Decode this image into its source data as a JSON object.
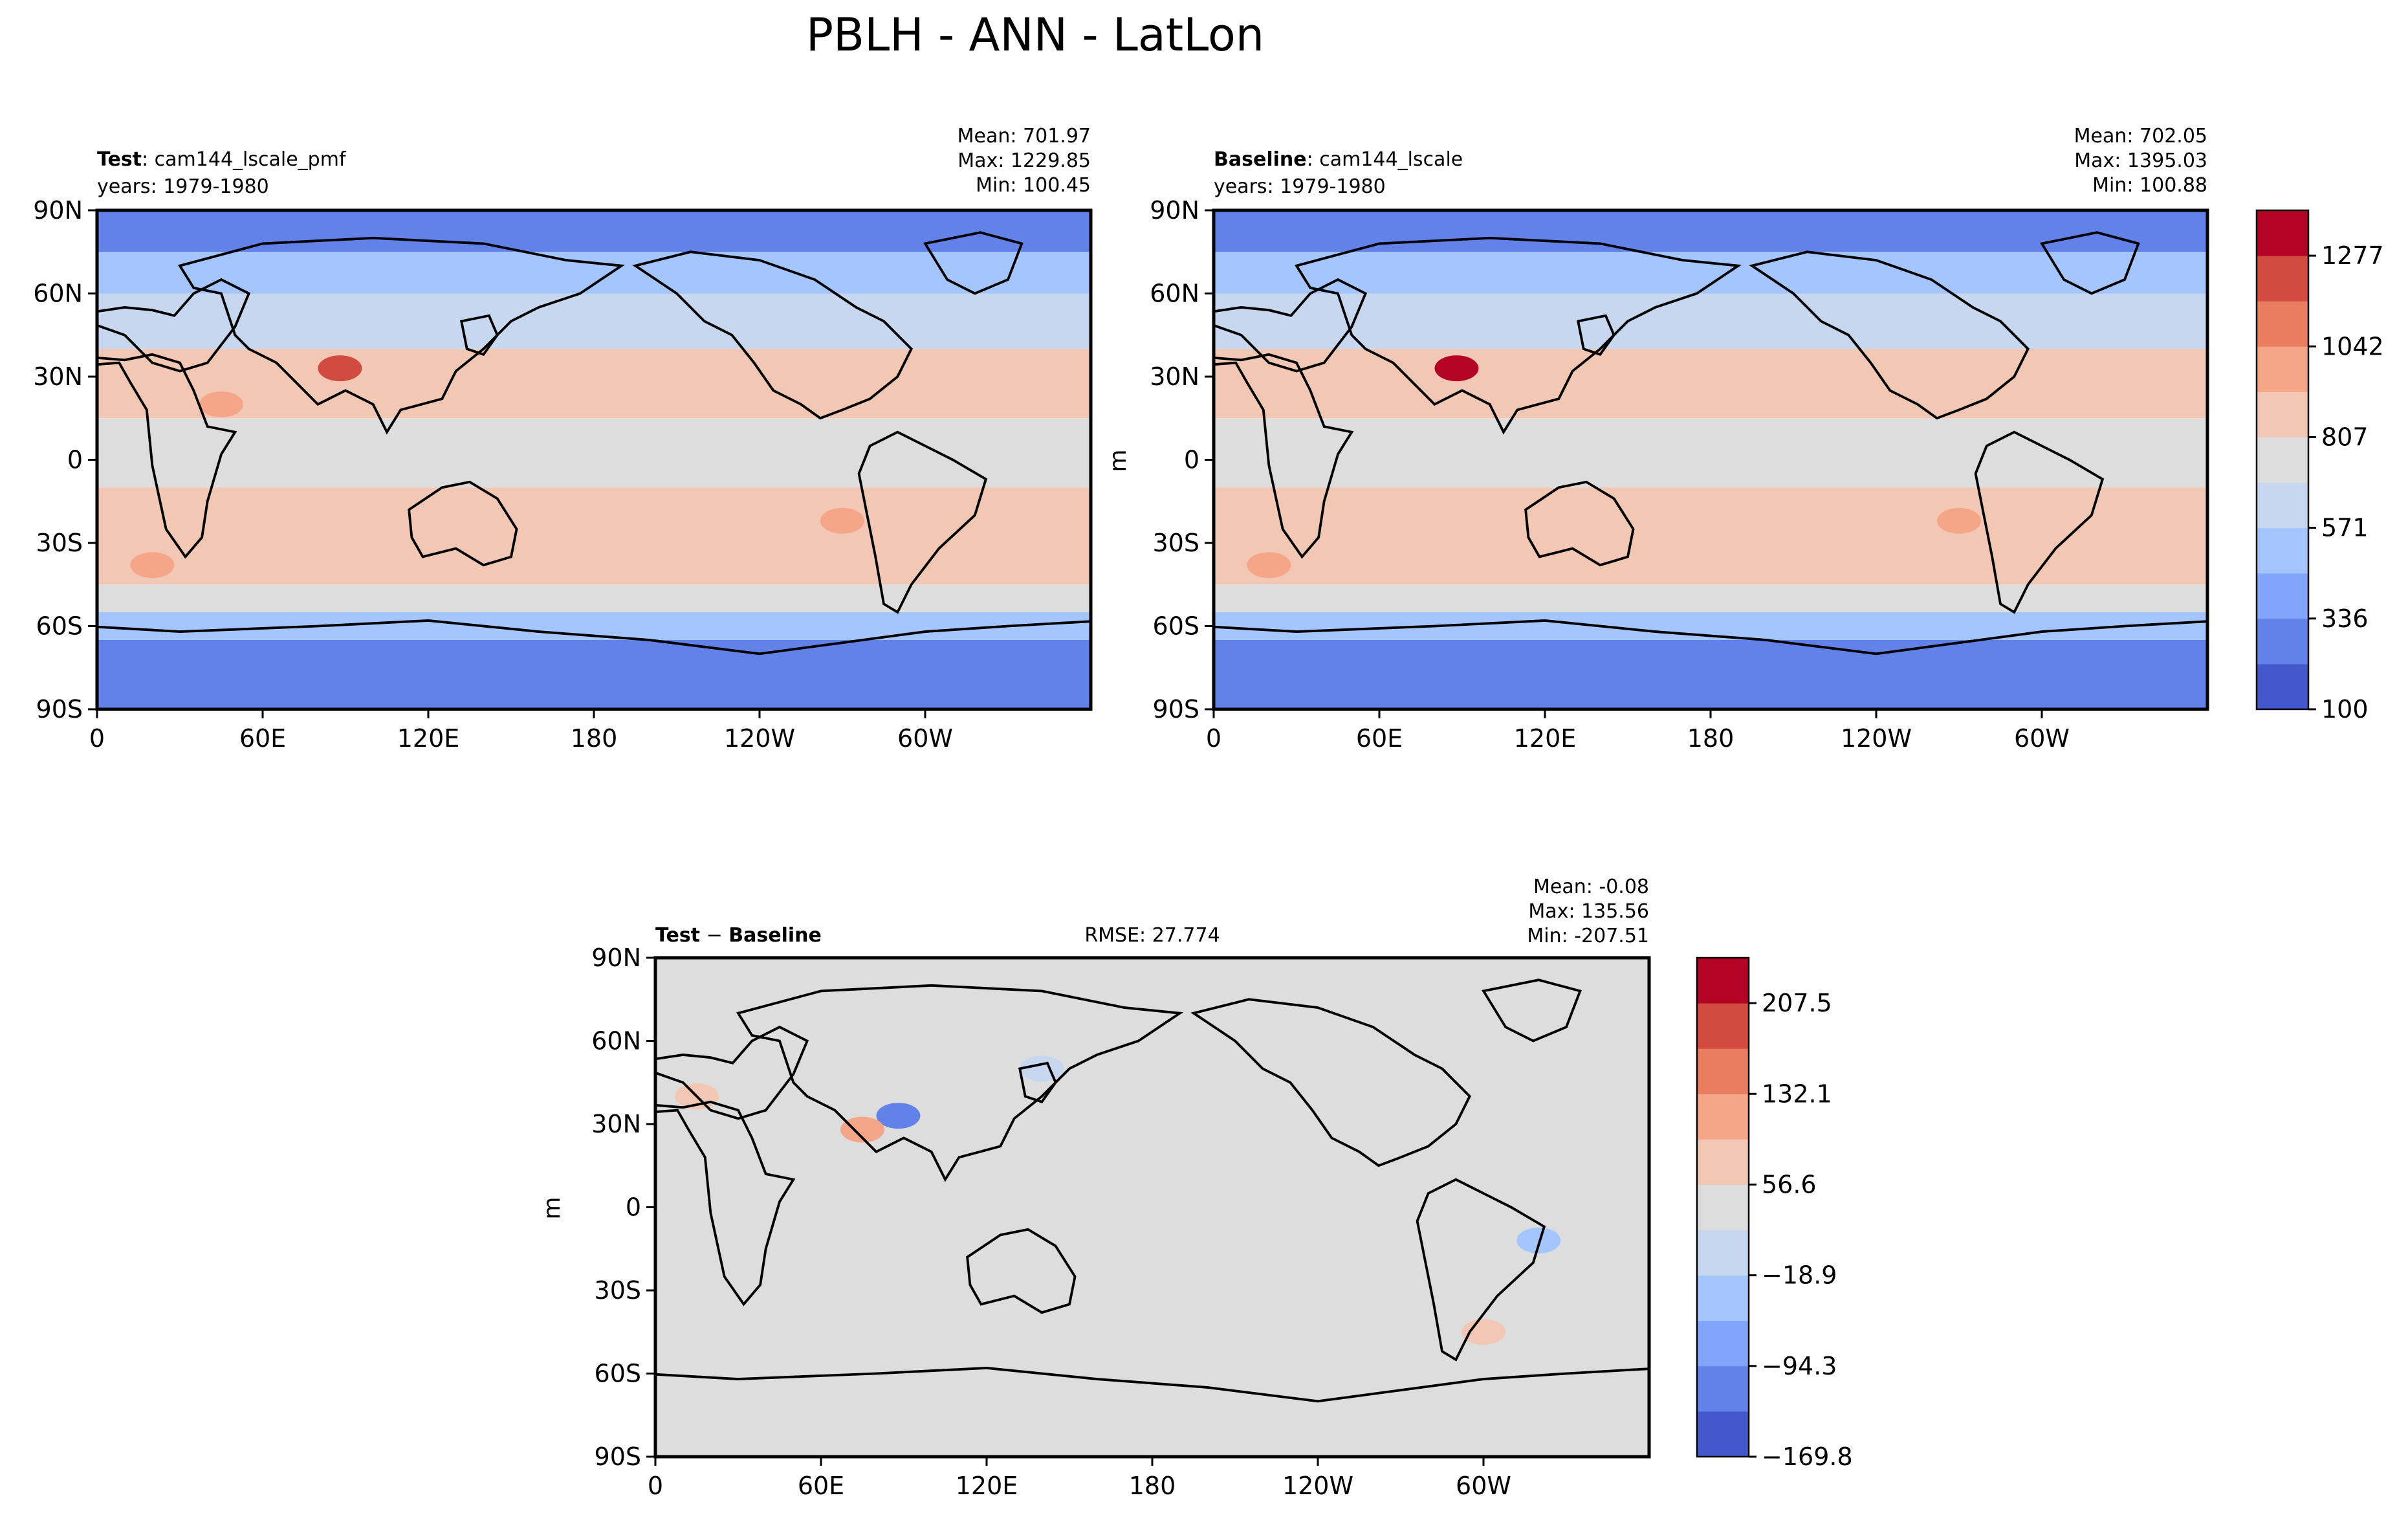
{
  "figure": {
    "title": "PBLH - ANN - LatLon"
  },
  "chart_data": [
    {
      "type": "heatmap",
      "panel": "test",
      "label_bold": "Test",
      "label_rest": ": cam144_lscale_pmf",
      "years": "years: 1979-1980",
      "stats": [
        "Mean: 701.97",
        "Max: 1229.85",
        "Min: 100.45"
      ],
      "ylabel": "",
      "x_ticks": [
        "0",
        "60E",
        "120E",
        "180",
        "120W",
        "60W"
      ],
      "y_ticks": [
        "90N",
        "60N",
        "30N",
        "0",
        "30S",
        "60S",
        "90S"
      ],
      "xlim": [
        0,
        360
      ],
      "ylim": [
        -90,
        90
      ],
      "colorbar": "shared",
      "bands": [
        {
          "lat": [
            90,
            75
          ],
          "level": 1
        },
        {
          "lat": [
            75,
            60
          ],
          "level": 3
        },
        {
          "lat": [
            60,
            40
          ],
          "level": 4
        },
        {
          "lat": [
            40,
            15
          ],
          "level": 6
        },
        {
          "lat": [
            15,
            -10
          ],
          "level": 5
        },
        {
          "lat": [
            -10,
            -45
          ],
          "level": 6
        },
        {
          "lat": [
            -45,
            -55
          ],
          "level": 5
        },
        {
          "lat": [
            -55,
            -65
          ],
          "level": 3
        },
        {
          "lat": [
            -65,
            -90
          ],
          "level": 1
        }
      ],
      "hotspots": [
        {
          "lon": 88,
          "lat": 33,
          "level": 9
        },
        {
          "lon": 20,
          "lat": -38,
          "level": 7
        },
        {
          "lon": 45,
          "lat": 20,
          "level": 7
        },
        {
          "lon": 270,
          "lat": -22,
          "level": 7
        }
      ]
    },
    {
      "type": "heatmap",
      "panel": "baseline",
      "label_bold": "Baseline",
      "label_rest": ": cam144_lscale",
      "years": "years: 1979-1980",
      "stats": [
        "Mean: 702.05",
        "Max: 1395.03",
        "Min: 100.88"
      ],
      "ylabel": "m",
      "x_ticks": [
        "0",
        "60E",
        "120E",
        "180",
        "120W",
        "60W"
      ],
      "y_ticks": [
        "90N",
        "60N",
        "30N",
        "0",
        "30S",
        "60S",
        "90S"
      ],
      "xlim": [
        0,
        360
      ],
      "ylim": [
        -90,
        90
      ],
      "colorbar": {
        "ticks": [
          "1277",
          "1042",
          "807",
          "571",
          "336",
          "100"
        ],
        "colors": [
          "#4358cb",
          "#6282ea",
          "#82a5fb",
          "#a5c5fe",
          "#c8d7f0",
          "#dddddd",
          "#f2c8b4",
          "#f6a688",
          "#ea7d60",
          "#d24b40",
          "#b40426"
        ]
      },
      "bands": [
        {
          "lat": [
            90,
            75
          ],
          "level": 1
        },
        {
          "lat": [
            75,
            60
          ],
          "level": 3
        },
        {
          "lat": [
            60,
            40
          ],
          "level": 4
        },
        {
          "lat": [
            40,
            15
          ],
          "level": 6
        },
        {
          "lat": [
            15,
            -10
          ],
          "level": 5
        },
        {
          "lat": [
            -10,
            -45
          ],
          "level": 6
        },
        {
          "lat": [
            -45,
            -55
          ],
          "level": 5
        },
        {
          "lat": [
            -55,
            -65
          ],
          "level": 3
        },
        {
          "lat": [
            -65,
            -90
          ],
          "level": 1
        }
      ],
      "hotspots": [
        {
          "lon": 88,
          "lat": 33,
          "level": 10
        },
        {
          "lon": 20,
          "lat": -38,
          "level": 7
        },
        {
          "lon": 270,
          "lat": -22,
          "level": 7
        }
      ]
    },
    {
      "type": "heatmap",
      "panel": "diff",
      "label_bold": "Test",
      "label_sep": " − ",
      "label_bold2": "Baseline",
      "rmse": "RMSE: 27.774",
      "stats": [
        "Mean: -0.08",
        "Max: 135.56",
        "Min: -207.51"
      ],
      "ylabel": "m",
      "x_ticks": [
        "0",
        "60E",
        "120E",
        "180",
        "120W",
        "60W"
      ],
      "y_ticks": [
        "90N",
        "60N",
        "30N",
        "0",
        "30S",
        "60S",
        "90S"
      ],
      "xlim": [
        0,
        360
      ],
      "ylim": [
        -90,
        90
      ],
      "colorbar": {
        "ticks": [
          "207.5",
          "132.1",
          "56.6",
          "−18.9",
          "−94.3",
          "−169.8"
        ],
        "colors": [
          "#4358cb",
          "#6282ea",
          "#82a5fb",
          "#a5c5fe",
          "#c8d7f0",
          "#dddddd",
          "#f2c8b4",
          "#f6a688",
          "#ea7d60",
          "#d24b40",
          "#b40426"
        ]
      },
      "bands": [
        {
          "lat": [
            90,
            -65
          ],
          "level": 5
        },
        {
          "lat": [
            -65,
            -90
          ],
          "level": 5
        }
      ],
      "hotspots": [
        {
          "lon": 88,
          "lat": 33,
          "level": 1
        },
        {
          "lon": 75,
          "lat": 28,
          "level": 7
        },
        {
          "lon": 15,
          "lat": 40,
          "level": 6
        },
        {
          "lon": 320,
          "lat": -12,
          "level": 3
        },
        {
          "lon": 140,
          "lat": 50,
          "level": 4
        },
        {
          "lon": 300,
          "lat": -45,
          "level": 6
        }
      ]
    }
  ]
}
